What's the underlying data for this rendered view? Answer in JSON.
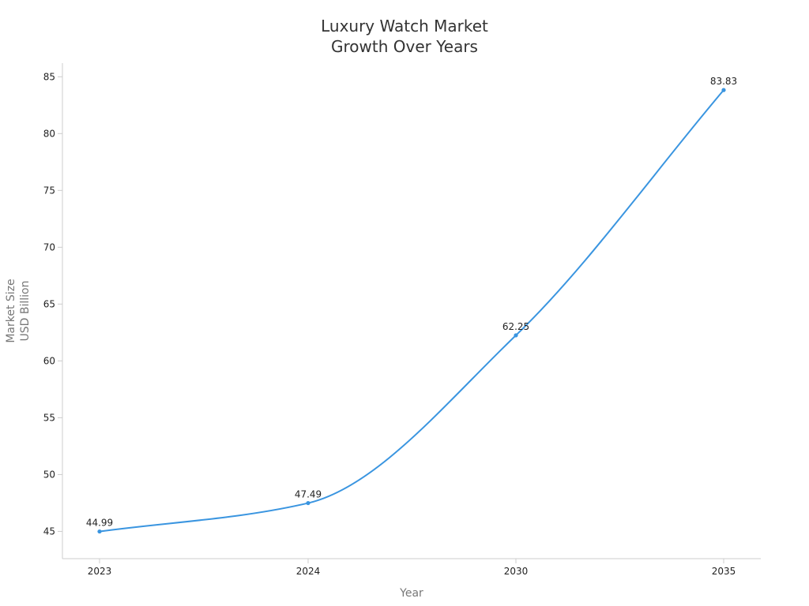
{
  "chart_data": {
    "type": "line",
    "title_lines": [
      "Luxury Watch Market",
      "Growth Over Years"
    ],
    "xlabel": "Year",
    "ylabel_lines": [
      "Market Size",
      "USD Billion"
    ],
    "categories": [
      "2023",
      "2024",
      "2030",
      "2035"
    ],
    "series": [
      {
        "values": [
          44.99,
          47.49,
          62.25,
          83.83
        ],
        "color": "#3a95e0"
      }
    ],
    "ylim": [
      42.6,
      86.2
    ],
    "yticks": [
      45,
      50,
      55,
      60,
      65,
      70,
      75,
      80,
      85
    ],
    "grid": false,
    "data_labels": true,
    "colors": {
      "line": "#3a95e0",
      "axis": "#cccccc",
      "text": "#222222"
    }
  }
}
